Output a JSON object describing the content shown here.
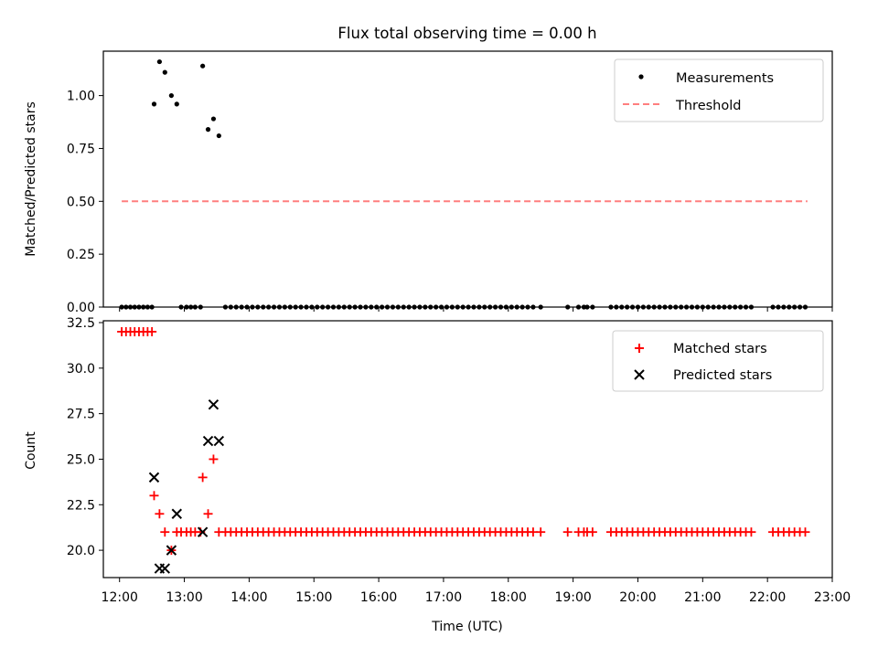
{
  "figure_title": "Flux total observing time = 0.00 h",
  "colors": {
    "measurements": "#000000",
    "threshold": "#ff7f7f",
    "matched": "#ff0000",
    "predicted": "#000000"
  },
  "chart_data": [
    {
      "type": "scatter",
      "ylabel": "Matched/Predicted stars",
      "xlim": [
        "11:45",
        "23:00"
      ],
      "ylim": [
        0,
        1.21
      ],
      "yticks": [
        "0.00",
        "0.25",
        "0.50",
        "0.75",
        "1.00"
      ],
      "grid": false,
      "legend_position": "top-right",
      "legend": [
        "Measurements",
        "Threshold"
      ],
      "series": [
        {
          "name": "Measurements",
          "marker": "dot",
          "points": [
            [
              "12:02",
              0
            ],
            [
              "12:06",
              0
            ],
            [
              "12:10",
              0
            ],
            [
              "12:14",
              0
            ],
            [
              "12:18",
              0
            ],
            [
              "12:22",
              0
            ],
            [
              "12:26",
              0
            ],
            [
              "12:30",
              0
            ],
            [
              "12:32",
              0.96
            ],
            [
              "12:37",
              1.16
            ],
            [
              "12:42",
              1.11
            ],
            [
              "12:48",
              1.0
            ],
            [
              "12:53",
              0.96
            ],
            [
              "12:57",
              0
            ],
            [
              "13:02",
              0
            ],
            [
              "13:06",
              0
            ],
            [
              "13:10",
              0
            ],
            [
              "13:15",
              0
            ],
            [
              "13:17",
              1.14
            ],
            [
              "13:22",
              0.84
            ],
            [
              "13:27",
              0.89
            ],
            [
              "13:32",
              0.81
            ],
            [
              "13:38",
              0
            ],
            [
              "13:43",
              0
            ],
            [
              "13:48",
              0
            ],
            [
              "13:53",
              0
            ],
            [
              "13:58",
              0
            ],
            [
              "14:03",
              0
            ],
            [
              "14:08",
              0
            ],
            [
              "14:13",
              0
            ],
            [
              "14:18",
              0
            ],
            [
              "14:23",
              0
            ],
            [
              "14:28",
              0
            ],
            [
              "14:33",
              0
            ],
            [
              "14:38",
              0
            ],
            [
              "14:43",
              0
            ],
            [
              "14:48",
              0
            ],
            [
              "14:53",
              0
            ],
            [
              "14:58",
              0
            ],
            [
              "15:03",
              0
            ],
            [
              "15:08",
              0
            ],
            [
              "15:13",
              0
            ],
            [
              "15:18",
              0
            ],
            [
              "15:23",
              0
            ],
            [
              "15:28",
              0
            ],
            [
              "15:33",
              0
            ],
            [
              "15:38",
              0
            ],
            [
              "15:43",
              0
            ],
            [
              "15:48",
              0
            ],
            [
              "15:53",
              0
            ],
            [
              "15:58",
              0
            ],
            [
              "16:03",
              0
            ],
            [
              "16:08",
              0
            ],
            [
              "16:13",
              0
            ],
            [
              "16:18",
              0
            ],
            [
              "16:23",
              0
            ],
            [
              "16:28",
              0
            ],
            [
              "16:33",
              0
            ],
            [
              "16:38",
              0
            ],
            [
              "16:43",
              0
            ],
            [
              "16:48",
              0
            ],
            [
              "16:53",
              0
            ],
            [
              "16:58",
              0
            ],
            [
              "17:03",
              0
            ],
            [
              "17:08",
              0
            ],
            [
              "17:13",
              0
            ],
            [
              "17:18",
              0
            ],
            [
              "17:23",
              0
            ],
            [
              "17:28",
              0
            ],
            [
              "17:33",
              0
            ],
            [
              "17:38",
              0
            ],
            [
              "17:43",
              0
            ],
            [
              "17:48",
              0
            ],
            [
              "17:53",
              0
            ],
            [
              "17:58",
              0
            ],
            [
              "18:03",
              0
            ],
            [
              "18:08",
              0
            ],
            [
              "18:13",
              0
            ],
            [
              "18:18",
              0
            ],
            [
              "18:23",
              0
            ],
            [
              "18:30",
              0
            ],
            [
              "18:55",
              0
            ],
            [
              "19:05",
              0
            ],
            [
              "19:10",
              0
            ],
            [
              "19:13",
              0
            ],
            [
              "19:18",
              0
            ],
            [
              "19:35",
              0
            ],
            [
              "19:40",
              0
            ],
            [
              "19:45",
              0
            ],
            [
              "19:50",
              0
            ],
            [
              "19:55",
              0
            ],
            [
              "20:00",
              0
            ],
            [
              "20:05",
              0
            ],
            [
              "20:10",
              0
            ],
            [
              "20:15",
              0
            ],
            [
              "20:20",
              0
            ],
            [
              "20:25",
              0
            ],
            [
              "20:30",
              0
            ],
            [
              "20:35",
              0
            ],
            [
              "20:40",
              0
            ],
            [
              "20:45",
              0
            ],
            [
              "20:50",
              0
            ],
            [
              "20:55",
              0
            ],
            [
              "21:00",
              0
            ],
            [
              "21:05",
              0
            ],
            [
              "21:10",
              0
            ],
            [
              "21:15",
              0
            ],
            [
              "21:20",
              0
            ],
            [
              "21:25",
              0
            ],
            [
              "21:30",
              0
            ],
            [
              "21:35",
              0
            ],
            [
              "21:40",
              0
            ],
            [
              "21:45",
              0
            ],
            [
              "22:05",
              0
            ],
            [
              "22:10",
              0
            ],
            [
              "22:15",
              0
            ],
            [
              "22:20",
              0
            ],
            [
              "22:25",
              0
            ],
            [
              "22:30",
              0
            ],
            [
              "22:35",
              0
            ]
          ]
        },
        {
          "name": "Threshold",
          "line": "dashed",
          "points": [
            [
              "12:02",
              0.5
            ],
            [
              "22:37",
              0.5
            ]
          ]
        }
      ]
    },
    {
      "type": "scatter",
      "ylabel": "Count",
      "xlabel": "Time (UTC)",
      "xlim": [
        "11:45",
        "23:00"
      ],
      "ylim": [
        18.5,
        32.6
      ],
      "yticks": [
        "20.0",
        "22.5",
        "25.0",
        "27.5",
        "30.0",
        "32.5"
      ],
      "xticks": [
        "12:00",
        "13:00",
        "14:00",
        "15:00",
        "16:00",
        "17:00",
        "18:00",
        "19:00",
        "20:00",
        "21:00",
        "22:00",
        "23:00"
      ],
      "grid": false,
      "legend_position": "top-right",
      "legend": [
        "Matched stars",
        "Predicted stars"
      ],
      "series": [
        {
          "name": "Matched stars",
          "marker": "plus",
          "points": [
            [
              "12:02",
              32
            ],
            [
              "12:06",
              32
            ],
            [
              "12:10",
              32
            ],
            [
              "12:14",
              32
            ],
            [
              "12:18",
              32
            ],
            [
              "12:22",
              32
            ],
            [
              "12:26",
              32
            ],
            [
              "12:30",
              32
            ],
            [
              "12:32",
              23
            ],
            [
              "12:37",
              22
            ],
            [
              "12:42",
              21
            ],
            [
              "12:48",
              20
            ],
            [
              "12:53",
              21
            ],
            [
              "12:57",
              21
            ],
            [
              "13:02",
              21
            ],
            [
              "13:06",
              21
            ],
            [
              "13:10",
              21
            ],
            [
              "13:15",
              21
            ],
            [
              "13:17",
              24
            ],
            [
              "13:22",
              22
            ],
            [
              "13:27",
              25
            ],
            [
              "13:32",
              21
            ],
            [
              "13:38",
              21
            ],
            [
              "13:43",
              21
            ],
            [
              "13:48",
              21
            ],
            [
              "13:53",
              21
            ],
            [
              "13:58",
              21
            ],
            [
              "14:03",
              21
            ],
            [
              "14:08",
              21
            ],
            [
              "14:13",
              21
            ],
            [
              "14:18",
              21
            ],
            [
              "14:23",
              21
            ],
            [
              "14:28",
              21
            ],
            [
              "14:33",
              21
            ],
            [
              "14:38",
              21
            ],
            [
              "14:43",
              21
            ],
            [
              "14:48",
              21
            ],
            [
              "14:53",
              21
            ],
            [
              "14:58",
              21
            ],
            [
              "15:03",
              21
            ],
            [
              "15:08",
              21
            ],
            [
              "15:13",
              21
            ],
            [
              "15:18",
              21
            ],
            [
              "15:23",
              21
            ],
            [
              "15:28",
              21
            ],
            [
              "15:33",
              21
            ],
            [
              "15:38",
              21
            ],
            [
              "15:43",
              21
            ],
            [
              "15:48",
              21
            ],
            [
              "15:53",
              21
            ],
            [
              "15:58",
              21
            ],
            [
              "16:03",
              21
            ],
            [
              "16:08",
              21
            ],
            [
              "16:13",
              21
            ],
            [
              "16:18",
              21
            ],
            [
              "16:23",
              21
            ],
            [
              "16:28",
              21
            ],
            [
              "16:33",
              21
            ],
            [
              "16:38",
              21
            ],
            [
              "16:43",
              21
            ],
            [
              "16:48",
              21
            ],
            [
              "16:53",
              21
            ],
            [
              "16:58",
              21
            ],
            [
              "17:03",
              21
            ],
            [
              "17:08",
              21
            ],
            [
              "17:13",
              21
            ],
            [
              "17:18",
              21
            ],
            [
              "17:23",
              21
            ],
            [
              "17:28",
              21
            ],
            [
              "17:33",
              21
            ],
            [
              "17:38",
              21
            ],
            [
              "17:43",
              21
            ],
            [
              "17:48",
              21
            ],
            [
              "17:53",
              21
            ],
            [
              "17:58",
              21
            ],
            [
              "18:03",
              21
            ],
            [
              "18:08",
              21
            ],
            [
              "18:13",
              21
            ],
            [
              "18:18",
              21
            ],
            [
              "18:23",
              21
            ],
            [
              "18:30",
              21
            ],
            [
              "18:55",
              21
            ],
            [
              "19:05",
              21
            ],
            [
              "19:10",
              21
            ],
            [
              "19:13",
              21
            ],
            [
              "19:18",
              21
            ],
            [
              "19:35",
              21
            ],
            [
              "19:40",
              21
            ],
            [
              "19:45",
              21
            ],
            [
              "19:50",
              21
            ],
            [
              "19:55",
              21
            ],
            [
              "20:00",
              21
            ],
            [
              "20:05",
              21
            ],
            [
              "20:10",
              21
            ],
            [
              "20:15",
              21
            ],
            [
              "20:20",
              21
            ],
            [
              "20:25",
              21
            ],
            [
              "20:30",
              21
            ],
            [
              "20:35",
              21
            ],
            [
              "20:40",
              21
            ],
            [
              "20:45",
              21
            ],
            [
              "20:50",
              21
            ],
            [
              "20:55",
              21
            ],
            [
              "21:00",
              21
            ],
            [
              "21:05",
              21
            ],
            [
              "21:10",
              21
            ],
            [
              "21:15",
              21
            ],
            [
              "21:20",
              21
            ],
            [
              "21:25",
              21
            ],
            [
              "21:30",
              21
            ],
            [
              "21:35",
              21
            ],
            [
              "21:40",
              21
            ],
            [
              "21:45",
              21
            ],
            [
              "22:05",
              21
            ],
            [
              "22:10",
              21
            ],
            [
              "22:15",
              21
            ],
            [
              "22:20",
              21
            ],
            [
              "22:25",
              21
            ],
            [
              "22:30",
              21
            ],
            [
              "22:35",
              21
            ]
          ]
        },
        {
          "name": "Predicted stars",
          "marker": "x",
          "points": [
            [
              "12:32",
              24
            ],
            [
              "12:37",
              19
            ],
            [
              "12:42",
              19
            ],
            [
              "12:48",
              20
            ],
            [
              "12:53",
              22
            ],
            [
              "13:17",
              21
            ],
            [
              "13:22",
              26
            ],
            [
              "13:27",
              28
            ],
            [
              "13:32",
              26
            ]
          ]
        }
      ]
    }
  ]
}
